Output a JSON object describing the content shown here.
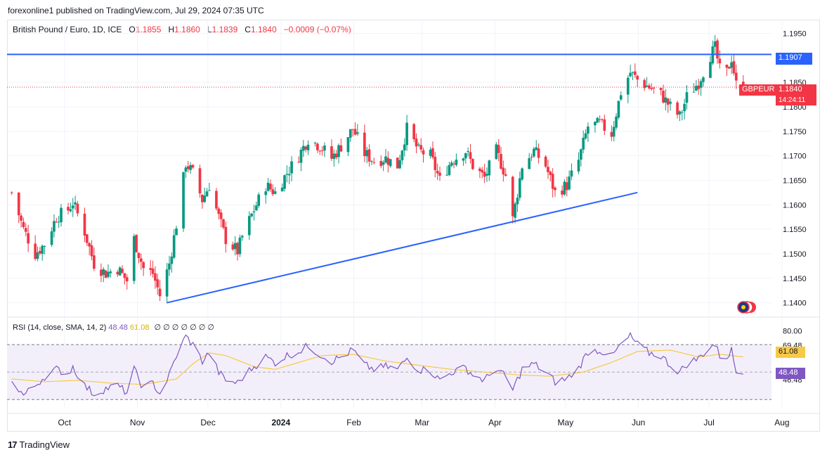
{
  "header": {
    "publisher": "forexonline1 published on TradingView.com, Jul 29, 2024 07:35 UTC"
  },
  "legend": {
    "symbol": "British Pound / Euro, 1D, ICE",
    "o_label": "O",
    "o": "1.1855",
    "h_label": "H",
    "h": "1.1860",
    "l_label": "L",
    "l": "1.1839",
    "c_label": "C",
    "c": "1.1840",
    "change": "−0.0009 (−0.07%)"
  },
  "rsi_legend": {
    "label": "RSI (14, close, SMA, 14, 2)",
    "rsi": "48.48",
    "sma": "61.08",
    "nan": "∅ ∅ ∅ ∅ ∅ ∅ ∅"
  },
  "price_tags": {
    "resistance": "1.1907",
    "symbol": "GBPEUR",
    "last": "1.1840",
    "countdown": "14:24:11",
    "rsi_sma": "61.08",
    "rsi": "48.48"
  },
  "footer": {
    "brand": "TradingView"
  },
  "colors": {
    "up": "#089981",
    "down": "#f23645",
    "trendline": "#2962ff",
    "rsi": "#7e57c2",
    "sma": "#f7c948",
    "rsi_band": "#f3effa"
  },
  "chart_data": [
    {
      "type": "candlestick",
      "title": "British Pound / Euro, 1D, ICE",
      "ylim": [
        1.1375,
        1.1975
      ],
      "y_ticks": [
        "1.1950",
        "1.1850",
        "1.1800",
        "1.1750",
        "1.1700",
        "1.1650",
        "1.1600",
        "1.1550",
        "1.1500",
        "1.1450",
        "1.1400"
      ],
      "x_ticks": [
        "Oct",
        "Nov",
        "Dec",
        "2024",
        "Feb",
        "Mar",
        "Apr",
        "May",
        "Jun",
        "Jul",
        "Aug"
      ],
      "close_path": [
        [
          "2023-09-22",
          1.1625
        ],
        [
          "2023-09-27",
          1.155
        ],
        [
          "2023-10-02",
          1.15
        ],
        [
          "2023-10-06",
          1.152
        ],
        [
          "2023-10-11",
          1.1575
        ],
        [
          "2023-10-16",
          1.159
        ],
        [
          "2023-10-18",
          1.1605
        ],
        [
          "2023-10-23",
          1.1545
        ],
        [
          "2023-10-27",
          1.148
        ],
        [
          "2023-11-01",
          1.146
        ],
        [
          "2023-11-06",
          1.147
        ],
        [
          "2023-11-10",
          1.1445
        ],
        [
          "2023-11-13",
          1.153
        ],
        [
          "2023-11-17",
          1.147
        ],
        [
          "2023-11-21",
          1.146
        ],
        [
          "2023-11-24",
          1.1415
        ],
        [
          "2023-11-28",
          1.148
        ],
        [
          "2023-12-01",
          1.156
        ],
        [
          "2023-12-05",
          1.1685
        ],
        [
          "2023-12-08",
          1.1665
        ],
        [
          "2023-12-12",
          1.161
        ],
        [
          "2023-12-15",
          1.164
        ],
        [
          "2023-12-19",
          1.1575
        ],
        [
          "2023-12-22",
          1.153
        ],
        [
          "2023-12-27",
          1.1505
        ],
        [
          "2023-12-29",
          1.1535
        ],
        [
          "2024-01-03",
          1.159
        ],
        [
          "2024-01-08",
          1.164
        ],
        [
          "2024-01-12",
          1.1625
        ],
        [
          "2024-01-17",
          1.1665
        ],
        [
          "2024-01-22",
          1.17
        ],
        [
          "2024-01-26",
          1.1735
        ],
        [
          "2024-01-31",
          1.172
        ],
        [
          "2024-02-05",
          1.1695
        ],
        [
          "2024-02-09",
          1.172
        ],
        [
          "2024-02-14",
          1.1755
        ],
        [
          "2024-02-19",
          1.1705
        ],
        [
          "2024-02-23",
          1.169
        ],
        [
          "2024-02-28",
          1.1695
        ],
        [
          "2024-03-04",
          1.168
        ],
        [
          "2024-03-08",
          1.1755
        ],
        [
          "2024-03-13",
          1.171
        ],
        [
          "2024-03-18",
          1.17
        ],
        [
          "2024-03-22",
          1.165
        ],
        [
          "2024-03-27",
          1.169
        ],
        [
          "2024-04-02",
          1.171
        ],
        [
          "2024-04-05",
          1.168
        ],
        [
          "2024-04-10",
          1.1655
        ],
        [
          "2024-04-15",
          1.171
        ],
        [
          "2024-04-19",
          1.166
        ],
        [
          "2024-04-22",
          1.157
        ],
        [
          "2024-04-26",
          1.168
        ],
        [
          "2024-05-01",
          1.171
        ],
        [
          "2024-05-06",
          1.168
        ],
        [
          "2024-05-10",
          1.1625
        ],
        [
          "2024-05-15",
          1.164
        ],
        [
          "2024-05-20",
          1.169
        ],
        [
          "2024-05-24",
          1.176
        ],
        [
          "2024-05-29",
          1.1765
        ],
        [
          "2024-06-03",
          1.1745
        ],
        [
          "2024-06-07",
          1.183
        ],
        [
          "2024-06-11",
          1.187
        ],
        [
          "2024-06-14",
          1.1855
        ],
        [
          "2024-06-19",
          1.184
        ],
        [
          "2024-06-24",
          1.1825
        ],
        [
          "2024-06-28",
          1.18
        ],
        [
          "2024-07-02",
          1.178
        ],
        [
          "2024-07-05",
          1.182
        ],
        [
          "2024-07-10",
          1.185
        ],
        [
          "2024-07-15",
          1.1905
        ],
        [
          "2024-07-17",
          1.192
        ],
        [
          "2024-07-19",
          1.1875
        ],
        [
          "2024-07-22",
          1.187
        ],
        [
          "2024-07-24",
          1.19
        ],
        [
          "2024-07-26",
          1.1845
        ],
        [
          "2024-07-29",
          1.184
        ]
      ],
      "annotations": {
        "resistance_level": 1.1907,
        "last_price": 1.184,
        "support_trendline": [
          [
            "2023-11-27",
            1.14
          ],
          [
            "2024-06-14",
            1.1625
          ]
        ]
      }
    },
    {
      "type": "line",
      "title": "RSI (14, close, SMA, 14, 2)",
      "ylim": [
        24,
        88
      ],
      "y_ticks": [
        "80.00",
        "69.48",
        "61.08",
        "48.48",
        "46.48"
      ],
      "bands": [
        30,
        70
      ],
      "series": [
        {
          "name": "RSI",
          "values": [
            [
              "2023-09-22",
              45
            ],
            [
              "2023-09-27",
              33
            ],
            [
              "2023-10-02",
              40
            ],
            [
              "2023-10-06",
              47
            ],
            [
              "2023-10-11",
              52
            ],
            [
              "2023-10-16",
              49
            ],
            [
              "2023-10-18",
              54
            ],
            [
              "2023-10-23",
              40
            ],
            [
              "2023-10-27",
              34
            ],
            [
              "2023-11-01",
              38
            ],
            [
              "2023-11-06",
              40
            ],
            [
              "2023-11-10",
              35
            ],
            [
              "2023-11-13",
              52
            ],
            [
              "2023-11-17",
              38
            ],
            [
              "2023-11-21",
              42
            ],
            [
              "2023-11-24",
              34
            ],
            [
              "2023-11-28",
              48
            ],
            [
              "2023-12-01",
              62
            ],
            [
              "2023-12-05",
              76
            ],
            [
              "2023-12-08",
              70
            ],
            [
              "2023-12-12",
              58
            ],
            [
              "2023-12-15",
              64
            ],
            [
              "2023-12-19",
              50
            ],
            [
              "2023-12-22",
              44
            ],
            [
              "2023-12-27",
              42
            ],
            [
              "2023-12-29",
              46
            ],
            [
              "2024-01-03",
              54
            ],
            [
              "2024-01-08",
              61
            ],
            [
              "2024-01-12",
              57
            ],
            [
              "2024-01-17",
              62
            ],
            [
              "2024-01-22",
              65
            ],
            [
              "2024-01-26",
              69
            ],
            [
              "2024-01-31",
              63
            ],
            [
              "2024-02-05",
              58
            ],
            [
              "2024-02-09",
              61
            ],
            [
              "2024-02-14",
              66
            ],
            [
              "2024-02-19",
              55
            ],
            [
              "2024-02-23",
              52
            ],
            [
              "2024-02-28",
              54
            ],
            [
              "2024-03-04",
              52
            ],
            [
              "2024-03-08",
              60
            ],
            [
              "2024-03-13",
              52
            ],
            [
              "2024-03-18",
              51
            ],
            [
              "2024-03-22",
              44
            ],
            [
              "2024-03-27",
              50
            ],
            [
              "2024-04-02",
              53
            ],
            [
              "2024-04-05",
              48
            ],
            [
              "2024-04-10",
              44
            ],
            [
              "2024-04-15",
              53
            ],
            [
              "2024-04-19",
              46
            ],
            [
              "2024-04-22",
              37
            ],
            [
              "2024-04-26",
              52
            ],
            [
              "2024-05-01",
              56
            ],
            [
              "2024-05-06",
              50
            ],
            [
              "2024-05-10",
              43
            ],
            [
              "2024-05-15",
              45
            ],
            [
              "2024-05-20",
              53
            ],
            [
              "2024-05-24",
              65
            ],
            [
              "2024-05-29",
              66
            ],
            [
              "2024-06-03",
              61
            ],
            [
              "2024-06-07",
              70
            ],
            [
              "2024-06-11",
              76
            ],
            [
              "2024-06-14",
              70
            ],
            [
              "2024-06-19",
              64
            ],
            [
              "2024-06-24",
              62
            ],
            [
              "2024-06-28",
              55
            ],
            [
              "2024-07-02",
              50
            ],
            [
              "2024-07-05",
              56
            ],
            [
              "2024-07-10",
              60
            ],
            [
              "2024-07-15",
              69
            ],
            [
              "2024-07-17",
              70
            ],
            [
              "2024-07-19",
              62
            ],
            [
              "2024-07-22",
              61
            ],
            [
              "2024-07-24",
              66
            ],
            [
              "2024-07-26",
              50
            ],
            [
              "2024-07-29",
              48.48
            ]
          ]
        },
        {
          "name": "SMA",
          "values": [
            [
              "2023-09-22",
              45
            ],
            [
              "2023-10-06",
              43
            ],
            [
              "2023-10-20",
              44
            ],
            [
              "2023-11-03",
              42
            ],
            [
              "2023-11-17",
              41
            ],
            [
              "2023-12-01",
              45
            ],
            [
              "2023-12-08",
              56
            ],
            [
              "2023-12-15",
              64
            ],
            [
              "2023-12-22",
              62
            ],
            [
              "2024-01-03",
              54
            ],
            [
              "2024-01-12",
              52
            ],
            [
              "2024-01-22",
              57
            ],
            [
              "2024-02-01",
              62
            ],
            [
              "2024-02-14",
              63
            ],
            [
              "2024-02-28",
              58
            ],
            [
              "2024-03-13",
              55
            ],
            [
              "2024-03-27",
              52
            ],
            [
              "2024-04-10",
              50
            ],
            [
              "2024-04-24",
              48
            ],
            [
              "2024-05-08",
              47
            ],
            [
              "2024-05-22",
              50
            ],
            [
              "2024-06-03",
              57
            ],
            [
              "2024-06-14",
              65
            ],
            [
              "2024-06-28",
              66
            ],
            [
              "2024-07-10",
              61
            ],
            [
              "2024-07-19",
              63
            ],
            [
              "2024-07-29",
              61.08
            ]
          ]
        }
      ]
    }
  ]
}
